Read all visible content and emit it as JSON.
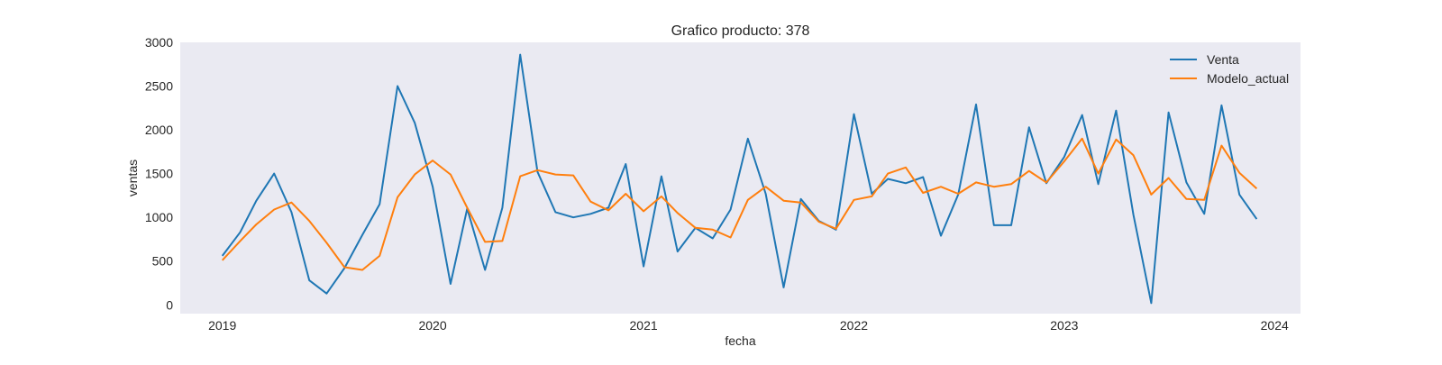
{
  "chart_data": {
    "type": "line",
    "title": "Grafico producto: 378",
    "xlabel": "fecha",
    "ylabel": "ventas",
    "x_ticks": [
      "2019",
      "2020",
      "2021",
      "2022",
      "2023",
      "2024"
    ],
    "y_ticks": [
      0,
      500,
      1000,
      1500,
      2000,
      2500,
      3000
    ],
    "xlim": [
      "2018-10-20",
      "2024-02-15"
    ],
    "ylim": [
      -100,
      3000
    ],
    "grid": false,
    "legend": "top-right",
    "background_color": "#eaeaf2",
    "x": [
      "2019-01-01",
      "2019-02-01",
      "2019-03-01",
      "2019-04-01",
      "2019-05-01",
      "2019-06-01",
      "2019-07-01",
      "2019-08-01",
      "2019-09-01",
      "2019-10-01",
      "2019-11-01",
      "2019-12-01",
      "2020-01-01",
      "2020-02-01",
      "2020-03-01",
      "2020-04-01",
      "2020-05-01",
      "2020-06-01",
      "2020-07-01",
      "2020-08-01",
      "2020-09-01",
      "2020-10-01",
      "2020-11-01",
      "2020-12-01",
      "2021-01-01",
      "2021-02-01",
      "2021-03-01",
      "2021-04-01",
      "2021-05-01",
      "2021-06-01",
      "2021-07-01",
      "2021-08-01",
      "2021-09-01",
      "2021-10-01",
      "2021-11-01",
      "2021-12-01",
      "2022-01-01",
      "2022-02-01",
      "2022-03-01",
      "2022-04-01",
      "2022-05-01",
      "2022-06-01",
      "2022-07-01",
      "2022-08-01",
      "2022-09-01",
      "2022-10-01",
      "2022-11-01",
      "2022-12-01",
      "2023-01-01",
      "2023-02-01",
      "2023-03-01",
      "2023-04-01",
      "2023-05-01",
      "2023-06-01",
      "2023-07-01",
      "2023-08-01",
      "2023-09-01",
      "2023-10-01",
      "2023-11-01",
      "2023-12-01"
    ],
    "series": [
      {
        "name": "Venta",
        "color": "#1f77b4",
        "values": [
          560,
          830,
          1190,
          1500,
          1060,
          280,
          130,
          420,
          800,
          1150,
          2500,
          2080,
          1350,
          240,
          1100,
          400,
          1110,
          2860,
          1520,
          1060,
          1000,
          1040,
          1110,
          1610,
          440,
          1470,
          610,
          880,
          760,
          1090,
          1900,
          1270,
          200,
          1210,
          960,
          860,
          2180,
          1270,
          1440,
          1390,
          1460,
          790,
          1260,
          2290,
          910,
          910,
          2030,
          1390,
          1690,
          2170,
          1380,
          2220,
          1030,
          20,
          2200,
          1400,
          1040,
          2280,
          1260,
          980
        ]
      },
      {
        "name": "Modelo_actual",
        "color": "#ff7f0e",
        "values": [
          510,
          730,
          920,
          1090,
          1170,
          960,
          710,
          430,
          400,
          560,
          1230,
          1490,
          1650,
          1490,
          1110,
          720,
          730,
          1470,
          1540,
          1490,
          1480,
          1180,
          1080,
          1270,
          1070,
          1240,
          1050,
          880,
          860,
          770,
          1200,
          1350,
          1190,
          1170,
          950,
          870,
          1200,
          1240,
          1500,
          1570,
          1280,
          1350,
          1270,
          1400,
          1350,
          1380,
          1530,
          1400,
          1640,
          1900,
          1500,
          1890,
          1710,
          1260,
          1450,
          1210,
          1200,
          1820,
          1510,
          1330
        ]
      }
    ]
  }
}
